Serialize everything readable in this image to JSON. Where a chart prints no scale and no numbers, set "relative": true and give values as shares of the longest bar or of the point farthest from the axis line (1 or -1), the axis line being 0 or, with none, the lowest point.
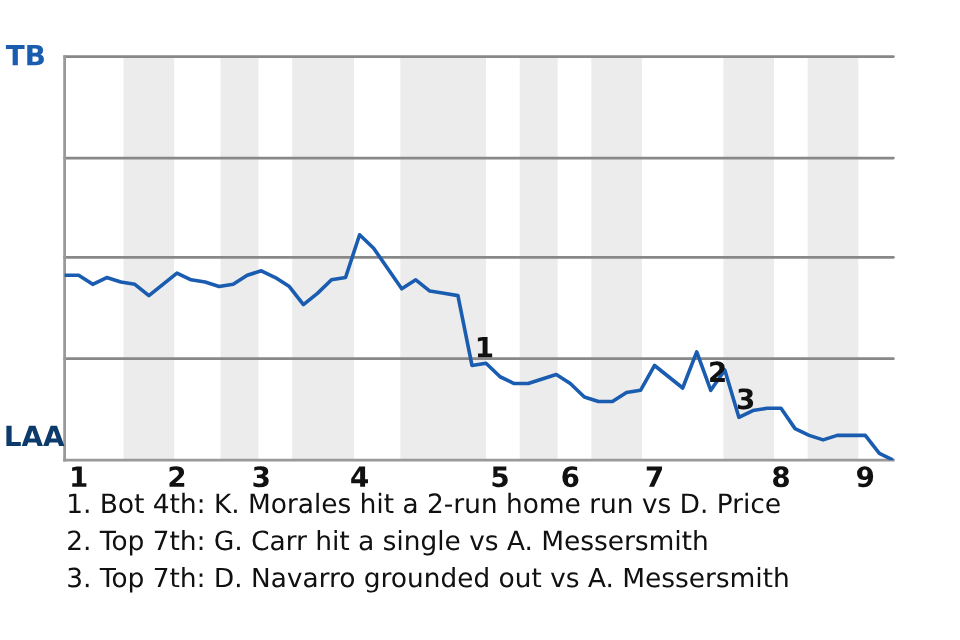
{
  "chart_data": {
    "type": "line",
    "relative": true,
    "categories": [
      null,
      "1",
      null,
      null,
      null,
      null,
      null,
      null,
      "2",
      null,
      null,
      null,
      null,
      null,
      "3",
      null,
      null,
      null,
      null,
      null,
      null,
      "4",
      null,
      null,
      null,
      null,
      null,
      null,
      null,
      null,
      null,
      "5",
      null,
      null,
      null,
      null,
      "6",
      null,
      null,
      null,
      null,
      null,
      "7",
      null,
      null,
      null,
      null,
      null,
      null,
      null,
      null,
      "8",
      null,
      null,
      null,
      null,
      null,
      "9",
      null,
      null
    ],
    "series": [
      {
        "color": "#1a5cb0",
        "values": [
          0.82,
          0.82,
          0.78,
          0.81,
          0.79,
          0.78,
          0.73,
          0.78,
          0.83,
          0.8,
          0.79,
          0.77,
          0.78,
          0.82,
          0.84,
          0.81,
          0.77,
          0.69,
          0.74,
          0.8,
          0.81,
          1,
          0.94,
          0.85,
          0.76,
          0.8,
          0.75,
          0.74,
          0.73,
          0.42,
          0.43,
          0.37,
          0.34,
          0.34,
          0.36,
          0.38,
          0.34,
          0.28,
          0.26,
          0.26,
          0.3,
          0.31,
          0.42,
          0.37,
          0.32,
          0.48,
          0.31,
          0.4,
          0.19,
          0.22,
          0.23,
          0.23,
          0.14,
          0.11,
          0.09,
          0.11,
          0.11,
          0.11,
          0.03,
          0
        ]
      }
    ],
    "ref_lines": [
      {
        "axis": "y",
        "value": 0.45,
        "color": "#888888"
      },
      {
        "axis": "y",
        "value": 0.9,
        "color": "#888888"
      },
      {
        "axis": "y",
        "value": 1.34,
        "color": "#888888"
      },
      {
        "axis": "y",
        "value": 1.79,
        "color": "#888888"
      }
    ],
    "annotations": [
      "TB",
      "LAA",
      {
        "text": "1",
        "y": 0.42
      },
      {
        "text": "2",
        "y": 0.31
      },
      {
        "text": "3",
        "y": 0.19
      },
      "1. Bot 4th: K. Morales hit a 2-run home run vs D. Price",
      "2. Top 7th: G. Carr hit a single vs A. Messersmith",
      "3. Top 7th: D. Navarro grounded out vs A. Messersmith"
    ],
    "legend": false
  }
}
